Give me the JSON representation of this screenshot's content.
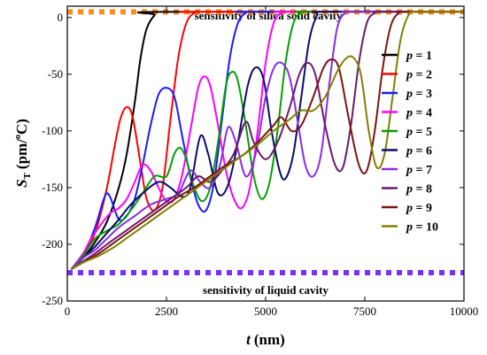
{
  "chart_data": {
    "type": "line",
    "xlabel": "t (nm)",
    "xlabel_var": "t",
    "xlabel_unit": "(nm)",
    "ylabel": "S_T (pm/°C)",
    "ylabel_var": "S",
    "ylabel_sub": "T",
    "ylabel_unit_pre": "(pm/",
    "ylabel_unit_sup": "o",
    "ylabel_unit_post": "C)",
    "xlim": [
      0,
      10000
    ],
    "ylim": [
      -250,
      10
    ],
    "xticks": [
      0,
      2500,
      5000,
      7500,
      10000
    ],
    "yticks": [
      0,
      -50,
      -100,
      -150,
      -200,
      -250
    ],
    "grid": false,
    "legend_placement": "right",
    "reference_lines": [
      {
        "label": "sensitivity of silica solid cavity",
        "y": 5,
        "color": "#ff8c1a"
      },
      {
        "label": "sensitivity of liquid cavity",
        "y": -225,
        "color": "#7b2ff7"
      }
    ],
    "series": [
      {
        "name": "p = 1",
        "p": "1",
        "color": "#000000",
        "points": [
          [
            100,
            -222
          ],
          [
            400,
            -212
          ],
          [
            700,
            -198
          ],
          [
            1000,
            -180
          ],
          [
            1300,
            -150
          ],
          [
            1500,
            -120
          ],
          [
            1700,
            -75
          ],
          [
            1850,
            -35
          ],
          [
            2000,
            -10
          ],
          [
            2200,
            2
          ],
          [
            2400,
            5
          ],
          [
            10000,
            5
          ]
        ]
      },
      {
        "name": "p = 2",
        "p": "2",
        "color": "#ff0000",
        "points": [
          [
            100,
            -222
          ],
          [
            400,
            -210
          ],
          [
            700,
            -190
          ],
          [
            1000,
            -150
          ],
          [
            1200,
            -112
          ],
          [
            1350,
            -88
          ],
          [
            1500,
            -79
          ],
          [
            1650,
            -88
          ],
          [
            1850,
            -130
          ],
          [
            2000,
            -160
          ],
          [
            2200,
            -170
          ],
          [
            2400,
            -150
          ],
          [
            2600,
            -90
          ],
          [
            2800,
            -35
          ],
          [
            3000,
            -5
          ],
          [
            3200,
            4
          ],
          [
            3400,
            5
          ],
          [
            10000,
            5
          ]
        ]
      },
      {
        "name": "p = 3",
        "p": "3",
        "color": "#1a1aff",
        "points": [
          [
            100,
            -222
          ],
          [
            400,
            -210
          ],
          [
            700,
            -185
          ],
          [
            900,
            -162
          ],
          [
            1000,
            -155
          ],
          [
            1100,
            -160
          ],
          [
            1300,
            -178
          ],
          [
            1500,
            -175
          ],
          [
            1700,
            -160
          ],
          [
            1900,
            -130
          ],
          [
            2100,
            -95
          ],
          [
            2300,
            -68
          ],
          [
            2500,
            -62
          ],
          [
            2700,
            -70
          ],
          [
            2900,
            -105
          ],
          [
            3100,
            -140
          ],
          [
            3300,
            -165
          ],
          [
            3500,
            -170
          ],
          [
            3700,
            -145
          ],
          [
            3900,
            -90
          ],
          [
            4100,
            -35
          ],
          [
            4300,
            -5
          ],
          [
            4500,
            4
          ],
          [
            4700,
            5
          ],
          [
            10000,
            5
          ]
        ]
      },
      {
        "name": "p = 4",
        "p": "4",
        "color": "#ff00ff",
        "points": [
          [
            100,
            -222
          ],
          [
            400,
            -208
          ],
          [
            600,
            -195
          ],
          [
            900,
            -180
          ],
          [
            1100,
            -172
          ],
          [
            1300,
            -168
          ],
          [
            1500,
            -160
          ],
          [
            1700,
            -145
          ],
          [
            1900,
            -130
          ],
          [
            2100,
            -135
          ],
          [
            2300,
            -150
          ],
          [
            2500,
            -162
          ],
          [
            2700,
            -160
          ],
          [
            2900,
            -138
          ],
          [
            3100,
            -100
          ],
          [
            3300,
            -62
          ],
          [
            3450,
            -52
          ],
          [
            3600,
            -60
          ],
          [
            3800,
            -95
          ],
          [
            4000,
            -135
          ],
          [
            4200,
            -160
          ],
          [
            4400,
            -168
          ],
          [
            4600,
            -150
          ],
          [
            4800,
            -100
          ],
          [
            5000,
            -40
          ],
          [
            5200,
            -5
          ],
          [
            5400,
            4
          ],
          [
            5600,
            5
          ],
          [
            10000,
            5
          ]
        ]
      },
      {
        "name": "p = 5",
        "p": "5",
        "color": "#00a000",
        "points": [
          [
            100,
            -222
          ],
          [
            400,
            -210
          ],
          [
            700,
            -195
          ],
          [
            1000,
            -188
          ],
          [
            1300,
            -182
          ],
          [
            1600,
            -170
          ],
          [
            1900,
            -155
          ],
          [
            2200,
            -140
          ],
          [
            2500,
            -140
          ],
          [
            2700,
            -120
          ],
          [
            2850,
            -115
          ],
          [
            3000,
            -125
          ],
          [
            3200,
            -150
          ],
          [
            3400,
            -162
          ],
          [
            3600,
            -150
          ],
          [
            3800,
            -110
          ],
          [
            4000,
            -60
          ],
          [
            4150,
            -48
          ],
          [
            4300,
            -56
          ],
          [
            4500,
            -95
          ],
          [
            4700,
            -140
          ],
          [
            4900,
            -160
          ],
          [
            5100,
            -145
          ],
          [
            5300,
            -100
          ],
          [
            5500,
            -40
          ],
          [
            5700,
            -5
          ],
          [
            5900,
            4
          ],
          [
            6100,
            5
          ],
          [
            10000,
            5
          ]
        ]
      },
      {
        "name": "p = 6",
        "p": "6",
        "color": "#0b0b6b",
        "points": [
          [
            100,
            -222
          ],
          [
            400,
            -212
          ],
          [
            700,
            -202
          ],
          [
            1000,
            -190
          ],
          [
            1300,
            -178
          ],
          [
            1600,
            -165
          ],
          [
            1900,
            -155
          ],
          [
            2300,
            -145
          ],
          [
            2600,
            -150
          ],
          [
            2900,
            -158
          ],
          [
            3100,
            -150
          ],
          [
            3350,
            -105
          ],
          [
            3550,
            -120
          ],
          [
            3800,
            -155
          ],
          [
            4050,
            -148
          ],
          [
            4300,
            -110
          ],
          [
            4550,
            -60
          ],
          [
            4750,
            -44
          ],
          [
            4950,
            -55
          ],
          [
            5150,
            -100
          ],
          [
            5350,
            -135
          ],
          [
            5500,
            -142
          ],
          [
            5700,
            -120
          ],
          [
            5900,
            -70
          ],
          [
            6100,
            -20
          ],
          [
            6300,
            2
          ],
          [
            6500,
            5
          ],
          [
            10000,
            5
          ]
        ]
      },
      {
        "name": "p = 7",
        "p": "7",
        "color": "#8a2be2",
        "points": [
          [
            100,
            -222
          ],
          [
            400,
            -212
          ],
          [
            700,
            -205
          ],
          [
            1000,
            -195
          ],
          [
            1300,
            -185
          ],
          [
            1700,
            -175
          ],
          [
            2100,
            -165
          ],
          [
            2500,
            -160
          ],
          [
            2800,
            -155
          ],
          [
            3100,
            -135
          ],
          [
            3350,
            -145
          ],
          [
            3600,
            -150
          ],
          [
            3850,
            -130
          ],
          [
            4050,
            -97
          ],
          [
            4250,
            -110
          ],
          [
            4500,
            -140
          ],
          [
            4750,
            -120
          ],
          [
            5000,
            -70
          ],
          [
            5200,
            -45
          ],
          [
            5400,
            -40
          ],
          [
            5600,
            -52
          ],
          [
            5800,
            -90
          ],
          [
            6000,
            -130
          ],
          [
            6200,
            -140
          ],
          [
            6400,
            -120
          ],
          [
            6600,
            -60
          ],
          [
            6800,
            -10
          ],
          [
            7000,
            4
          ],
          [
            7200,
            5
          ],
          [
            10000,
            5
          ]
        ]
      },
      {
        "name": "p = 8",
        "p": "8",
        "color": "#6b1a6b",
        "points": [
          [
            100,
            -222
          ],
          [
            400,
            -215
          ],
          [
            700,
            -208
          ],
          [
            1000,
            -200
          ],
          [
            1400,
            -190
          ],
          [
            1800,
            -180
          ],
          [
            2200,
            -170
          ],
          [
            2600,
            -160
          ],
          [
            3000,
            -150
          ],
          [
            3300,
            -140
          ],
          [
            3600,
            -145
          ],
          [
            3900,
            -135
          ],
          [
            4200,
            -120
          ],
          [
            4500,
            -92
          ],
          [
            4700,
            -110
          ],
          [
            5000,
            -125
          ],
          [
            5300,
            -110
          ],
          [
            5600,
            -80
          ],
          [
            5850,
            -50
          ],
          [
            6050,
            -40
          ],
          [
            6250,
            -50
          ],
          [
            6500,
            -95
          ],
          [
            6750,
            -130
          ],
          [
            6950,
            -132
          ],
          [
            7150,
            -95
          ],
          [
            7350,
            -40
          ],
          [
            7550,
            -5
          ],
          [
            7750,
            4
          ],
          [
            7950,
            5
          ],
          [
            10000,
            5
          ]
        ]
      },
      {
        "name": "p = 9",
        "p": "9",
        "color": "#7a1414",
        "points": [
          [
            100,
            -222
          ],
          [
            400,
            -216
          ],
          [
            800,
            -208
          ],
          [
            1200,
            -198
          ],
          [
            1600,
            -188
          ],
          [
            2000,
            -178
          ],
          [
            2400,
            -168
          ],
          [
            2800,
            -158
          ],
          [
            3200,
            -150
          ],
          [
            3600,
            -140
          ],
          [
            4000,
            -130
          ],
          [
            4400,
            -122
          ],
          [
            4800,
            -110
          ],
          [
            5200,
            -95
          ],
          [
            5400,
            -88
          ],
          [
            5650,
            -100
          ],
          [
            5900,
            -95
          ],
          [
            6200,
            -70
          ],
          [
            6450,
            -45
          ],
          [
            6650,
            -37
          ],
          [
            6850,
            -45
          ],
          [
            7100,
            -90
          ],
          [
            7350,
            -130
          ],
          [
            7550,
            -135
          ],
          [
            7750,
            -100
          ],
          [
            7950,
            -45
          ],
          [
            8150,
            -8
          ],
          [
            8350,
            4
          ],
          [
            8550,
            5
          ],
          [
            10000,
            5
          ]
        ]
      },
      {
        "name": "p = 10",
        "p": "10",
        "color": "#808000",
        "points": [
          [
            100,
            -222
          ],
          [
            400,
            -216
          ],
          [
            800,
            -210
          ],
          [
            1200,
            -202
          ],
          [
            1600,
            -192
          ],
          [
            2000,
            -182
          ],
          [
            2400,
            -172
          ],
          [
            2800,
            -162
          ],
          [
            3200,
            -152
          ],
          [
            3600,
            -142
          ],
          [
            4000,
            -132
          ],
          [
            4400,
            -122
          ],
          [
            4800,
            -112
          ],
          [
            5200,
            -100
          ],
          [
            5600,
            -90
          ],
          [
            5900,
            -82
          ],
          [
            6200,
            -82
          ],
          [
            6500,
            -70
          ],
          [
            6800,
            -48
          ],
          [
            7000,
            -37
          ],
          [
            7200,
            -35
          ],
          [
            7400,
            -50
          ],
          [
            7600,
            -100
          ],
          [
            7800,
            -132
          ],
          [
            8000,
            -120
          ],
          [
            8200,
            -70
          ],
          [
            8400,
            -20
          ],
          [
            8600,
            2
          ],
          [
            8800,
            5
          ],
          [
            10000,
            5
          ]
        ]
      }
    ]
  }
}
